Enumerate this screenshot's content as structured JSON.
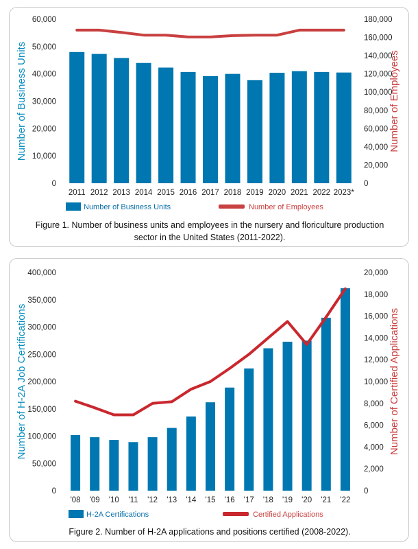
{
  "chart_data": [
    {
      "type": "bar",
      "categories": [
        "2011",
        "2012",
        "2013",
        "2014",
        "2015",
        "2016",
        "2017",
        "2018",
        "2019",
        "2020",
        "2021",
        "2022",
        "2023*"
      ],
      "series": [
        {
          "name": "Number of Business Units",
          "axis": "left",
          "kind": "bar",
          "color": "#0077b0",
          "values": [
            48000,
            47300,
            45800,
            44000,
            42300,
            40700,
            39200,
            40000,
            37700,
            40400,
            41000,
            40700,
            40500
          ]
        },
        {
          "name": "Number of Employees",
          "axis": "right",
          "kind": "line",
          "color": "#c94040",
          "values": [
            168000,
            168000,
            165500,
            162500,
            162500,
            160500,
            160500,
            162000,
            162500,
            162500,
            168000,
            168000,
            168000
          ]
        }
      ],
      "ylabel": "Number of Business Units",
      "y2label": "Number of Employees",
      "ylim": [
        0,
        60000
      ],
      "y2lim": [
        0,
        180000
      ],
      "yticks": [
        "0",
        "10,000",
        "20,000",
        "30,000",
        "40,000",
        "50,000",
        "60,000"
      ],
      "y2ticks": [
        "0",
        "20,000",
        "40,000",
        "60,000",
        "80,000",
        "100,000",
        "120,000",
        "140,000",
        "160,000",
        "180,000"
      ],
      "caption": "Figure 1. Number of business units and employees in the nursery and floriculture production sector in the United States (2011-2022).",
      "ylabel_color": "#0a8ebf",
      "y2label_color": "#c94040"
    },
    {
      "type": "bar",
      "categories": [
        "'08",
        "'09",
        "'10",
        "'11",
        "'12",
        "'13",
        "'14",
        "'15",
        "'16",
        "'17",
        "'18",
        "'19",
        "'20",
        "'21",
        "'22"
      ],
      "series": [
        {
          "name": "H-2A Certifications",
          "axis": "left",
          "kind": "bar",
          "color": "#0077b0",
          "values": [
            102000,
            98000,
            93000,
            89000,
            98000,
            115000,
            136000,
            162000,
            189000,
            224000,
            261000,
            273000,
            275000,
            317000,
            371000
          ]
        },
        {
          "name": "Certified Applications",
          "axis": "right",
          "kind": "line",
          "color": "#c9282e",
          "values": [
            8200,
            7600,
            6950,
            6950,
            8000,
            8150,
            9300,
            10000,
            11200,
            12500,
            14000,
            15500,
            13400,
            15900,
            18500
          ]
        }
      ],
      "ylabel": "Number of H-2A Job Certifications",
      "y2label": "Number of Certified Applications",
      "ylim": [
        0,
        400000
      ],
      "y2lim": [
        0,
        20000
      ],
      "yticks": [
        "0",
        "50,000",
        "100,000",
        "150,000",
        "200,000",
        "250,000",
        "300,000",
        "350,000",
        "400,000"
      ],
      "y2ticks": [
        "0",
        "2,000",
        "4,000",
        "6,000",
        "8,000",
        "10,000",
        "12,000",
        "14,000",
        "16,000",
        "18,000",
        "20,000"
      ],
      "caption": "Figure 2. Number of H-2A applications and positions certified (2008-2022).",
      "ylabel_color": "#0a8ebf",
      "y2label_color": "#c94040"
    }
  ]
}
